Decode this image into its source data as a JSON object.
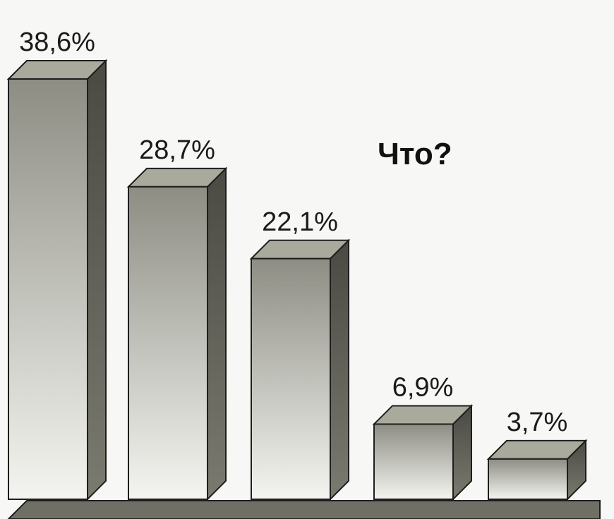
{
  "chart_data": {
    "type": "bar",
    "title": "Что?",
    "categories": [
      "",
      "",
      "",
      "",
      ""
    ],
    "values": [
      38.6,
      28.7,
      22.1,
      6.9,
      3.7
    ],
    "value_labels": [
      "38,6%",
      "28,7%",
      "22,1%",
      "6,9%",
      "3,7%"
    ],
    "ylim": [
      0,
      40
    ],
    "grid": false,
    "style": "3d"
  },
  "colors": {
    "bar_front_top": "#8d8d84",
    "bar_front_bottom": "#f4f5f0",
    "bar_top": "#a9aa9c",
    "bar_side": "#55554d",
    "floor": "#6f6f66",
    "outline": "#1e1e1e"
  }
}
